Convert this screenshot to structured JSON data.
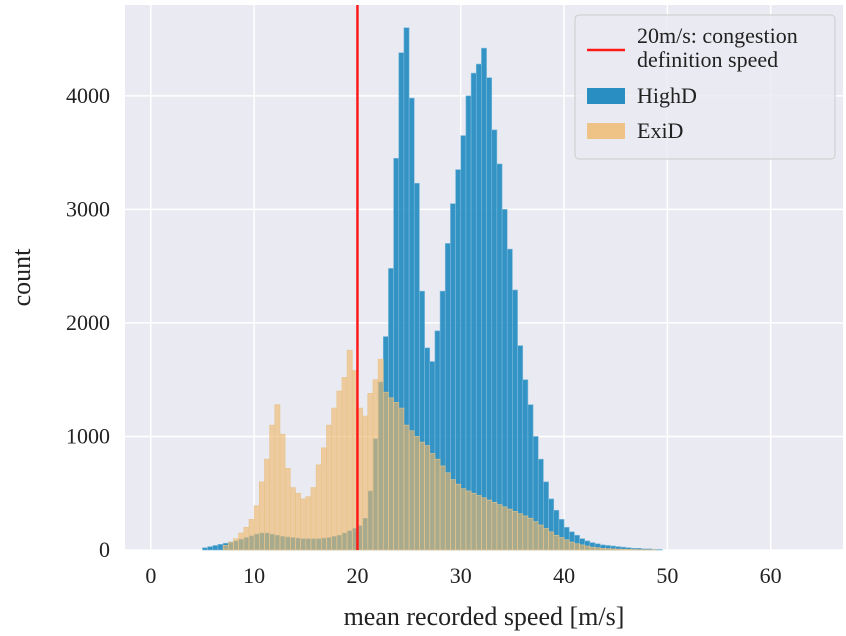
{
  "chart_data": {
    "type": "bar",
    "xlabel": "mean recorded speed [m/s]",
    "ylabel": "count",
    "xlim": [
      -2.5,
      67
    ],
    "ylim": [
      0,
      4800
    ],
    "xticks": [
      0,
      10,
      20,
      30,
      40,
      50,
      60
    ],
    "yticks": [
      0,
      1000,
      2000,
      3000,
      4000
    ],
    "grid": true,
    "legend_position": "top-right",
    "bin_width": 0.5,
    "reference_line": {
      "x": 20,
      "label": "20m/s: congestion definition speed",
      "color": "#ff1a1a"
    },
    "series": [
      {
        "name": "HighD",
        "color": "#1f8ac0",
        "bin_start": 5.0,
        "values": [
          20,
          30,
          40,
          50,
          60,
          70,
          80,
          95,
          110,
          125,
          140,
          150,
          150,
          140,
          130,
          120,
          115,
          110,
          105,
          100,
          100,
          100,
          100,
          105,
          110,
          120,
          130,
          150,
          170,
          190,
          215,
          280,
          520,
          980,
          1480,
          1880,
          2480,
          3450,
          4380,
          4600,
          3980,
          3230,
          2280,
          1780,
          1660,
          1930,
          2280,
          2700,
          3050,
          3350,
          3650,
          4000,
          4200,
          4280,
          4420,
          4160,
          3700,
          3400,
          3000,
          2650,
          2290,
          1800,
          1500,
          1280,
          1000,
          800,
          600,
          450,
          350,
          270,
          200,
          160,
          130,
          100,
          80,
          65,
          55,
          45,
          40,
          35,
          30,
          25,
          20,
          15,
          15,
          10,
          10,
          5,
          5
        ]
      },
      {
        "name": "ExiD",
        "color": "#f0b86a",
        "bin_start": 7.0,
        "values": [
          40,
          70,
          100,
          150,
          200,
          270,
          390,
          600,
          800,
          1100,
          1280,
          1020,
          720,
          550,
          500,
          450,
          470,
          550,
          750,
          900,
          1100,
          1250,
          1400,
          1520,
          1760,
          1580,
          1250,
          1180,
          1380,
          1500,
          1680,
          1390,
          1340,
          1300,
          1250,
          1100,
          1050,
          1000,
          950,
          920,
          850,
          800,
          740,
          680,
          620,
          580,
          540,
          520,
          500,
          480,
          460,
          440,
          420,
          400,
          380,
          360,
          340,
          320,
          300,
          280,
          250,
          220,
          190,
          160,
          130,
          110,
          90,
          70,
          55,
          45,
          35,
          25,
          20,
          15,
          12,
          10,
          8,
          6,
          5,
          4,
          3,
          2,
          2,
          1
        ]
      }
    ]
  }
}
